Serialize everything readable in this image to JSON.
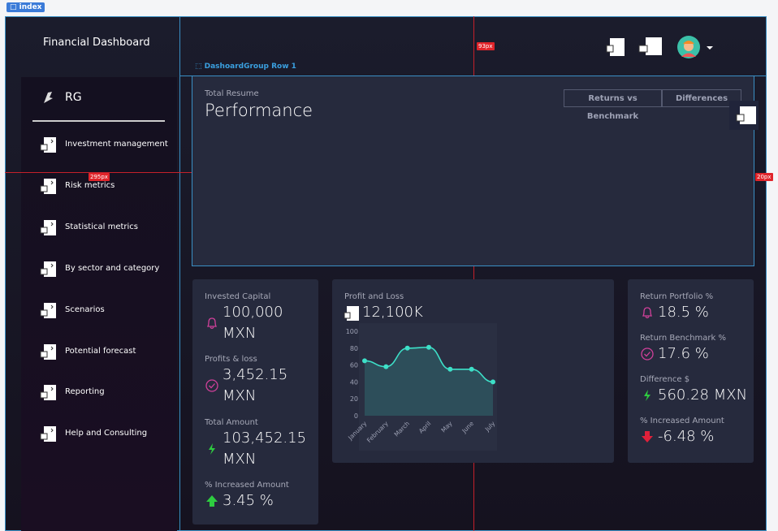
{
  "tag": "index",
  "sidebar": {
    "title": "Financial Dashboard",
    "brand": "RG",
    "menu": [
      "Investment management",
      "Risk metrics",
      "Statistical metrics",
      "By sector and category",
      "Scenarios",
      "Potential forecast",
      "Reporting",
      "Help and Consulting"
    ]
  },
  "header": {
    "group_label": "DashoardGroup Row 1"
  },
  "guides": [
    "93px",
    "295px",
    "20px"
  ],
  "performance": {
    "subtitle": "Total Resume",
    "title": "Performance",
    "tabs": [
      "Returns vs Benchmark",
      "Differences"
    ]
  },
  "cards": {
    "left": [
      {
        "label": "Invested Capital",
        "value": "100,000 MXN"
      },
      {
        "label": "Profits & loss",
        "value": "3,452.15 MXN"
      },
      {
        "label": "Total Amount",
        "value": "103,452.15 MXN"
      },
      {
        "label": "% Increased Amount",
        "value": "3.45 %"
      }
    ],
    "right": [
      {
        "label": "Return Portfolio %",
        "value": "18.5 %"
      },
      {
        "label": "Return Benchmark %",
        "value": "17.6 %"
      },
      {
        "label": "Difference $",
        "value": "560.28 MXN"
      },
      {
        "label": "% Increased Amount",
        "value": "-6.48 %"
      }
    ]
  },
  "chart_data": {
    "type": "line",
    "title": "Profit and Loss",
    "subtitle": "12,100K",
    "categories": [
      "January",
      "February",
      "March",
      "April",
      "May",
      "June",
      "July"
    ],
    "values": [
      65,
      58,
      80,
      81,
      55,
      55,
      40
    ],
    "color": "#3de0c8",
    "ylim": [
      0,
      100
    ],
    "yticks": [
      0,
      20,
      40,
      60,
      80,
      100
    ]
  }
}
